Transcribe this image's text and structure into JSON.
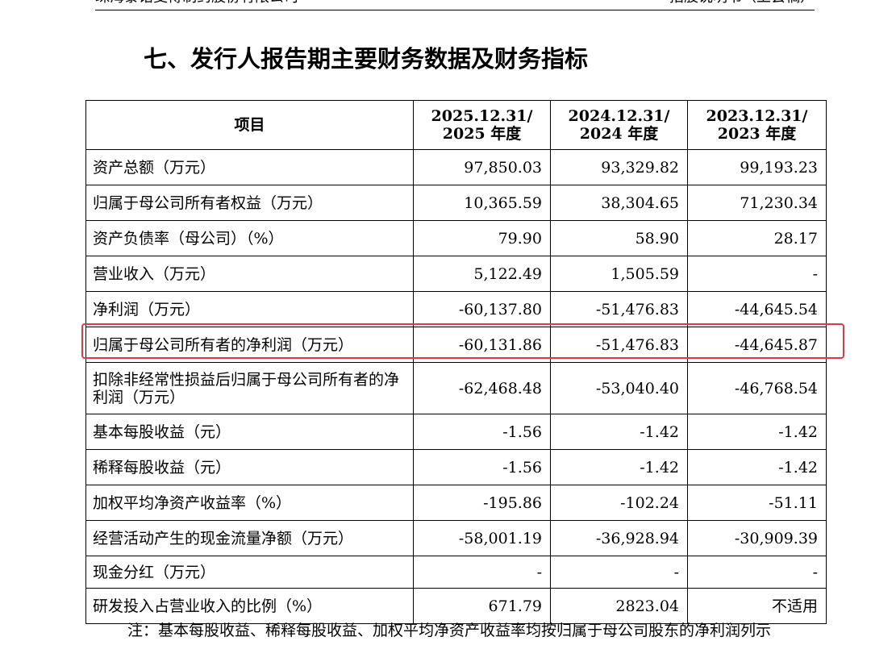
{
  "header": {
    "company": "珠海泰诺麦博制药股份有限公司",
    "doc": "招股说明书（上会稿）"
  },
  "section_title": "七、发行人报告期主要财务数据及财务指标",
  "table": {
    "headers": [
      "项目",
      "2025.12.31/\n2025 年度",
      "2024.12.31/\n2024 年度",
      "2023.12.31/\n2023 年度"
    ],
    "rows": [
      {
        "label": "资产总额（万元）",
        "v2025": "97,850.03",
        "v2024": "93,329.82",
        "v2023": "99,193.23"
      },
      {
        "label": "归属于母公司所有者权益（万元）",
        "v2025": "10,365.59",
        "v2024": "38,304.65",
        "v2023": "71,230.34"
      },
      {
        "label": "资产负债率（母公司）（%）",
        "v2025": "79.90",
        "v2024": "58.90",
        "v2023": "28.17"
      },
      {
        "label": "营业收入（万元）",
        "v2025": "5,122.49",
        "v2024": "1,505.59",
        "v2023": "-"
      },
      {
        "label": "净利润（万元）",
        "v2025": "-60,137.80",
        "v2024": "-51,476.83",
        "v2023": "-44,645.54"
      },
      {
        "label": "归属于母公司所有者的净利润（万元）",
        "v2025": "-60,131.86",
        "v2024": "-51,476.83",
        "v2023": "-44,645.87"
      },
      {
        "label": "扣除非经常性损益后归属于母公司所有者的净利润（万元）",
        "v2025": "-62,468.48",
        "v2024": "-53,040.40",
        "v2023": "-46,768.54"
      },
      {
        "label": "基本每股收益（元）",
        "v2025": "-1.56",
        "v2024": "-1.42",
        "v2023": "-1.42"
      },
      {
        "label": "稀释每股收益（元）",
        "v2025": "-1.56",
        "v2024": "-1.42",
        "v2023": "-1.42"
      },
      {
        "label": "加权平均净资产收益率（%）",
        "v2025": "-195.86",
        "v2024": "-102.24",
        "v2023": "-51.11"
      },
      {
        "label": "经营活动产生的现金流量净额（万元）",
        "v2025": "-58,001.19",
        "v2024": "-36,928.94",
        "v2023": "-30,909.39"
      },
      {
        "label": "现金分红（万元）",
        "v2025": "-",
        "v2024": "-",
        "v2023": "-"
      },
      {
        "label": "研发投入占营业收入的比例（%）",
        "v2025": "671.79",
        "v2024": "2823.04",
        "v2023": "不适用"
      }
    ]
  },
  "note": "注：基本每股收益、稀释每股收益、加权平均净资产收益率均按归属于母公司股东的净利润列示",
  "highlight_color": "#e5373d"
}
